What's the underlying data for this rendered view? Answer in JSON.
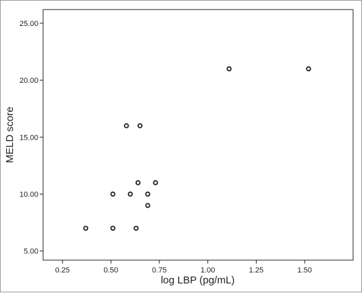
{
  "chart_data": {
    "type": "scatter",
    "title": "",
    "xlabel": "log LBP (pg/mL)",
    "ylabel": "MELD score",
    "xlim": [
      0.15,
      1.75
    ],
    "ylim": [
      4.2,
      26.2
    ],
    "x_ticks": [
      0.25,
      0.5,
      0.75,
      1.0,
      1.25,
      1.5
    ],
    "x_tick_labels": [
      "0.25",
      "0.50",
      "0.75",
      "1.00",
      "1.25",
      "1.50"
    ],
    "y_ticks": [
      5,
      10,
      15,
      20,
      25
    ],
    "y_tick_labels": [
      "5.00",
      "10.00",
      "15.00",
      "20.00",
      "25.00"
    ],
    "grid": false,
    "marker": "open-circle",
    "colors": {
      "axis": "#222222",
      "marker": "#222222",
      "frame": "#9a9a9a"
    },
    "points": [
      {
        "x": 0.37,
        "y": 7
      },
      {
        "x": 0.51,
        "y": 7
      },
      {
        "x": 0.63,
        "y": 7
      },
      {
        "x": 0.69,
        "y": 9
      },
      {
        "x": 0.51,
        "y": 10
      },
      {
        "x": 0.6,
        "y": 10
      },
      {
        "x": 0.69,
        "y": 10
      },
      {
        "x": 0.64,
        "y": 11
      },
      {
        "x": 0.73,
        "y": 11
      },
      {
        "x": 0.58,
        "y": 16
      },
      {
        "x": 0.65,
        "y": 16
      },
      {
        "x": 1.11,
        "y": 21
      },
      {
        "x": 1.52,
        "y": 21
      }
    ]
  }
}
